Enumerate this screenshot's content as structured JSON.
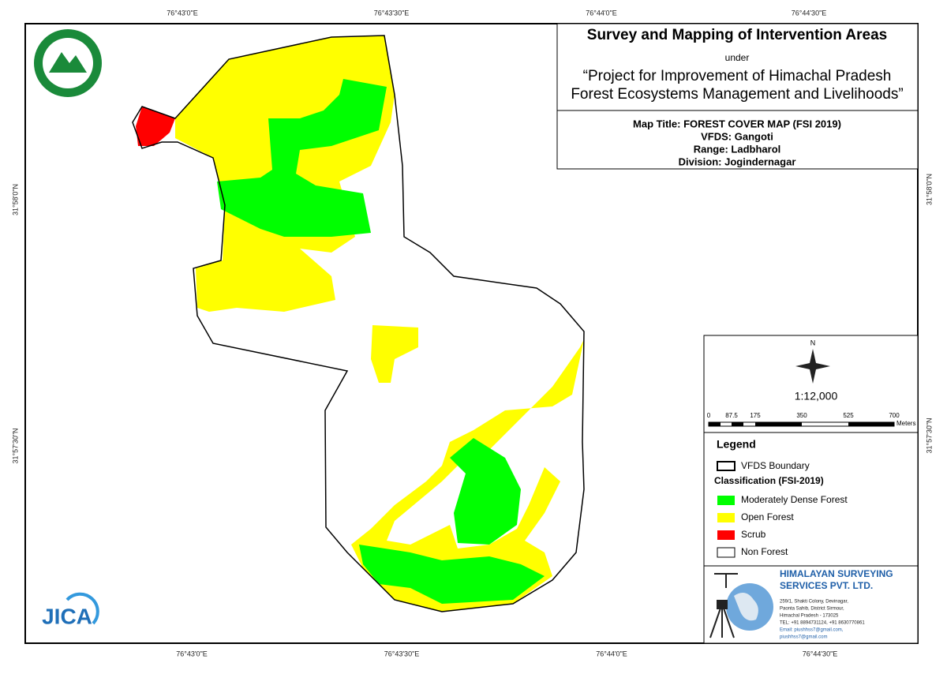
{
  "header": {
    "title": "Survey and Mapping of Intervention Areas",
    "under": "under",
    "project_lines": [
      "“Project for Improvement of Himachal Pradesh",
      "Forest Ecosystems Management and Livelihoods”"
    ]
  },
  "map_info": [
    "Map Title: FOREST COVER MAP (FSI 2019)",
    "VFDS: Gangoti",
    "Range: Ladbharol",
    "Division: Jogindernagar"
  ],
  "coordinates": {
    "longitudes": [
      "76°43'0\"E",
      "76°43'30\"E",
      "76°44'0\"E",
      "76°44'30\"E"
    ],
    "latitudes": [
      "31°58'0\"N",
      "31°57'30\"N"
    ]
  },
  "north": "N",
  "scale": "1:12,000",
  "scale_bar": {
    "ticks": [
      "0",
      "87.5",
      "175",
      "350",
      "525",
      "700"
    ],
    "unit": "Meters"
  },
  "legend": {
    "title": "Legend",
    "boundary": "VFDS Boundary",
    "classification": "Classification (FSI-2019)",
    "items": [
      {
        "label": "Moderately Dense Forest",
        "color": "#00ff00"
      },
      {
        "label": "Open Forest",
        "color": "#ffff00"
      },
      {
        "label": "Scrub",
        "color": "#ff0000"
      },
      {
        "label": "Non Forest",
        "color": "#ffffff"
      }
    ]
  },
  "company": {
    "name_lines": [
      "HIMALAYAN SURVEYING",
      "SERVICES PVT. LTD."
    ],
    "address_lines": [
      "259/1, Shakti Colony, Devinagar,",
      "Paonta Sahib, District Sirmour,",
      "Himachal Pradesh - 173025",
      "TEL: +91 8894731124, +91 8630770861",
      "Email: piushhss7@gmail.com,",
      "piushhss7@gmail.com"
    ]
  },
  "logo": "JICA"
}
